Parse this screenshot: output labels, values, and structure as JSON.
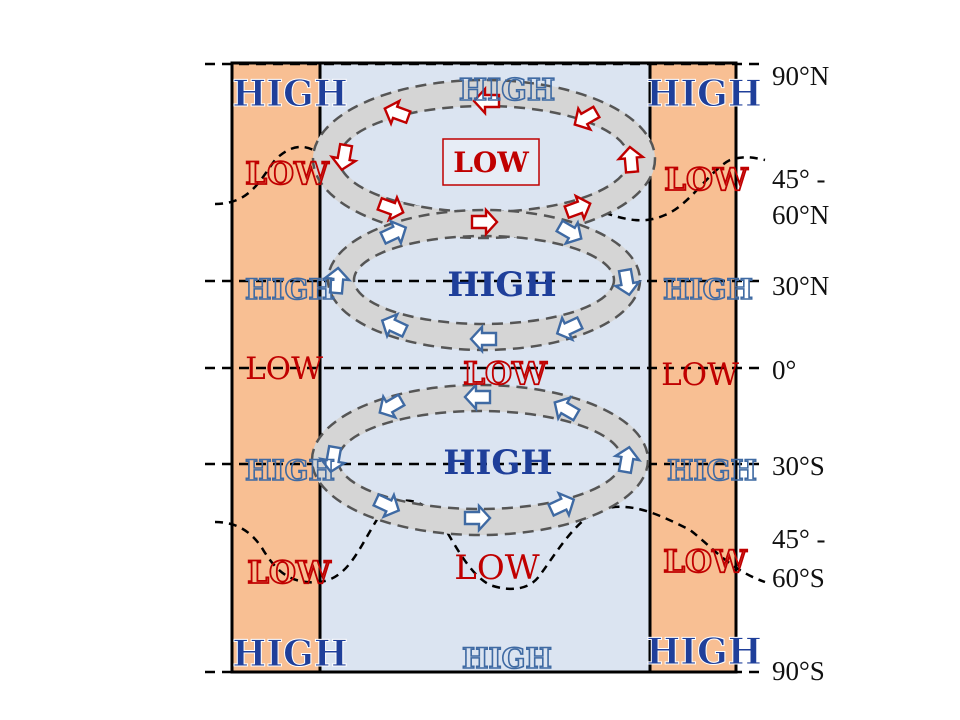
{
  "colors": {
    "ocean": "#dbe4f1",
    "land": "#f8bf93",
    "border": "#000000",
    "ring": "#d5d5d5",
    "ring_dash": "#555555",
    "high_solid": "#1f3f9a",
    "low_solid": "#c00000",
    "high_outline": "#3f6aa3",
    "low_outline": "#c00000"
  },
  "latitudes": {
    "n90": "90°N",
    "n45_60_line1": "45° -",
    "n45_60_line2": "60°N",
    "n30": "30°N",
    "eq": "0°",
    "s30": "30°S",
    "s45_60_line1": "45° -",
    "s45_60_line2": "60°S",
    "s90": "90°S"
  },
  "pressure_labels": {
    "left_high_top": "HIGH",
    "center_high_top": "HIGH",
    "right_high_top": "HIGH",
    "left_low_subpolar_n": "LOW",
    "center_low_boxed": "LOW",
    "right_low_subpolar_n": "LOW",
    "left_high_30n": "HIGH",
    "center_high_30n": "HIGH",
    "right_high_30n": "HIGH",
    "left_low_eq": "LOW",
    "center_low_eq": "LOW",
    "right_low_eq": "LOW",
    "left_high_30s": "HIGH",
    "center_high_30s": "HIGH",
    "right_high_30s": "HIGH",
    "left_low_subpolar_s": "LOW",
    "center_low_subpolar_s": "LOW",
    "right_low_subpolar_s": "LOW",
    "left_high_bottom": "HIGH",
    "center_high_bottom": "HIGH",
    "right_high_bottom": "HIGH"
  },
  "circulation_arrows": {
    "north_low_ring": "counterclockwise",
    "north_high_ring": "clockwise",
    "south_high_ring": "counterclockwise"
  }
}
